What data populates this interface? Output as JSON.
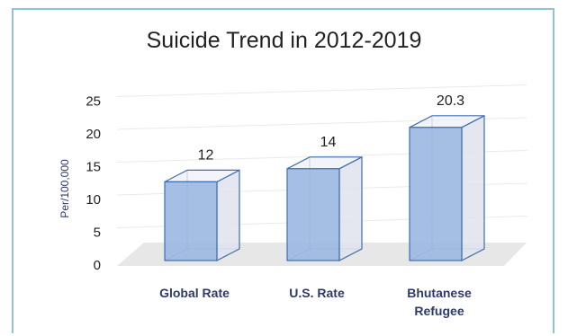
{
  "chart_data": {
    "type": "bar",
    "title": "Suicide Trend in 2012-2019",
    "ylabel": "Per/100,000",
    "xlabel": "",
    "ylim": [
      0,
      25
    ],
    "yticks": [
      0,
      5,
      10,
      15,
      20,
      25
    ],
    "categories": [
      "Global Rate",
      "U.S. Rate",
      "Bhutanese Refugee"
    ],
    "values": [
      12,
      14,
      20.3
    ],
    "data_labels": [
      "12",
      "14",
      "20.3"
    ],
    "grid": true,
    "style": "3d-column",
    "colors": {
      "bar_front": "#9bb8e1",
      "bar_side": "#dfe3ec",
      "bar_edge": "#3f6fb0",
      "floor": "#e7e7e7"
    }
  }
}
